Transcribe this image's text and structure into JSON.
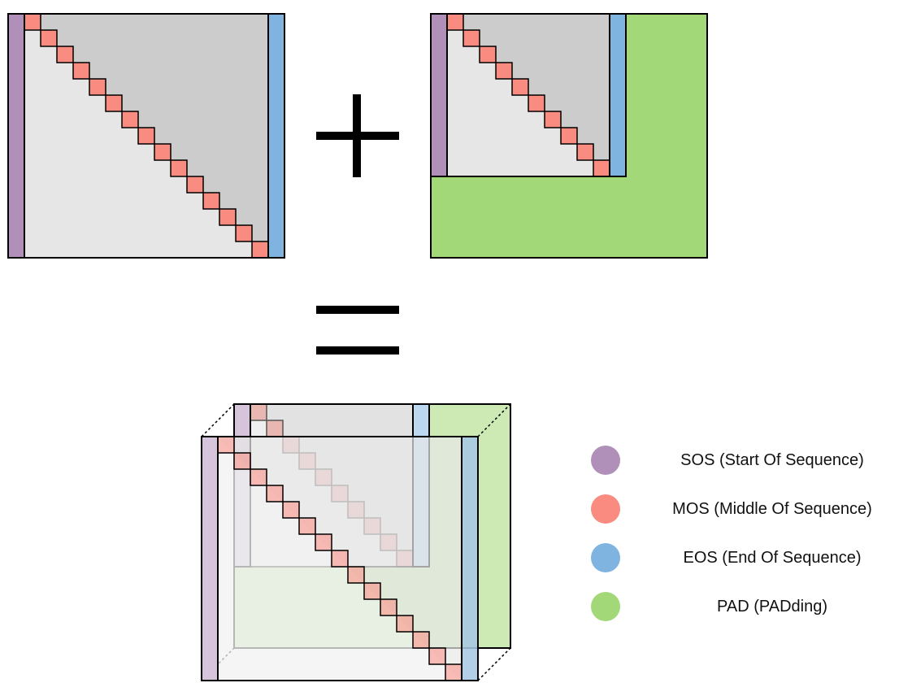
{
  "colors": {
    "sos": "#b08fb8",
    "mos": "#fa8b80",
    "eos": "#80b4e0",
    "pad": "#a3d878",
    "gray_light": "#e6e6e6",
    "gray_dark": "#cccccc",
    "outline": "#000000"
  },
  "operators": {
    "plus_icon": "plus-icon",
    "equals_icon": "equals-icon"
  },
  "matrices": {
    "full_size": 16,
    "short_size": 11
  },
  "legend": [
    {
      "key": "sos",
      "label": "SOS (Start Of Sequence)"
    },
    {
      "key": "mos",
      "label": "MOS (Middle Of Sequence)"
    },
    {
      "key": "eos",
      "label": "EOS (End Of Sequence)"
    },
    {
      "key": "pad",
      "label": "PAD (PADding)"
    }
  ]
}
